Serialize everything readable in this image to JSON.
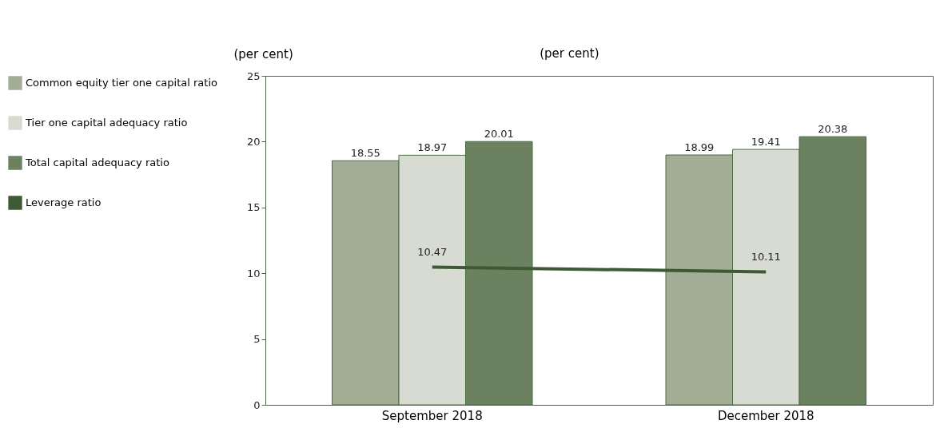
{
  "chart_data": {
    "type": "bar",
    "categories": [
      "September 2018",
      "December 2018"
    ],
    "series": [
      {
        "name": "Common equity tier one capital ratio",
        "color": "#a3ad96",
        "values": [
          18.55,
          18.99
        ]
      },
      {
        "name": "Tier one capital adequacy ratio",
        "color": "#d8dbd2",
        "values": [
          18.97,
          19.41
        ]
      },
      {
        "name": "Total capital adequacy ratio",
        "color": "#6b8160",
        "values": [
          20.01,
          20.38
        ]
      },
      {
        "name": "Leverage ratio",
        "type": "line",
        "color": "#3e5a35",
        "values": [
          10.47,
          10.11
        ]
      }
    ],
    "ylabel": "(per cent)",
    "annotations": [
      "(per cent)"
    ],
    "ylim": [
      0,
      25
    ],
    "yticks": [
      0,
      5,
      10,
      15,
      20,
      25
    ],
    "grid": false,
    "legend": "left",
    "data_labels": true
  }
}
